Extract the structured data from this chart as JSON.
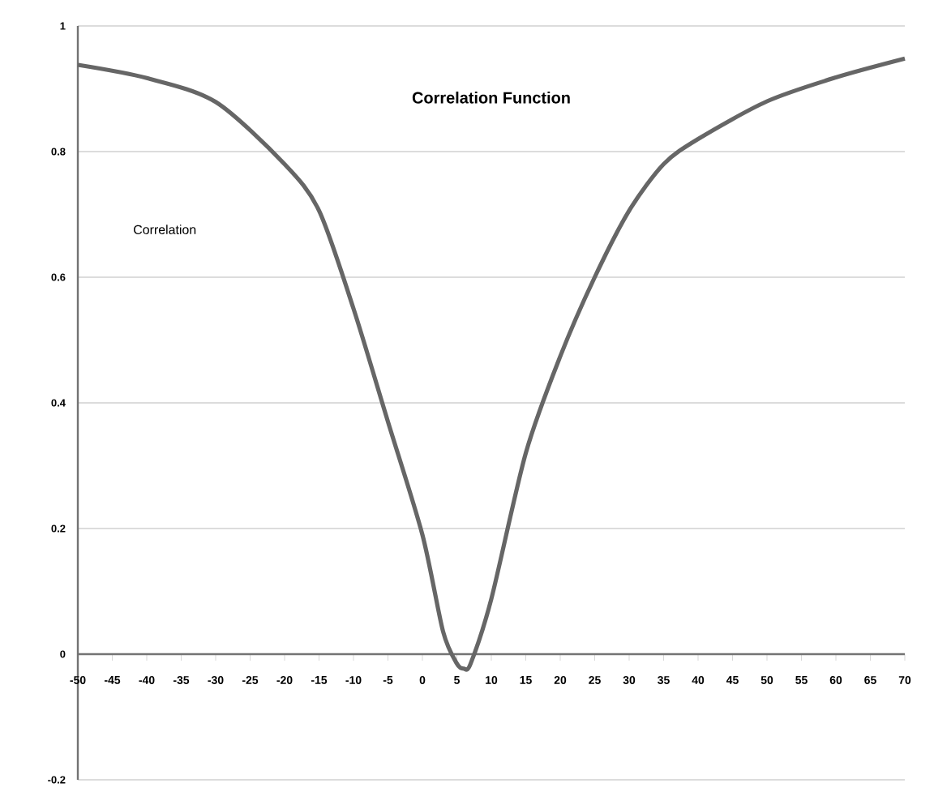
{
  "chart_data": {
    "type": "line",
    "title": "Correlation Function",
    "annotations": [
      "Correlation"
    ],
    "x": [
      -50,
      -40,
      -30,
      -20,
      -15,
      -10,
      -5,
      0,
      3,
      5,
      6,
      7,
      10,
      15,
      20,
      25,
      30,
      35,
      40,
      50,
      60,
      70
    ],
    "series": [
      {
        "color": "#666666",
        "values": [
          0.938,
          0.917,
          0.879,
          0.78,
          0.706,
          0.55,
          0.37,
          0.19,
          0.036,
          -0.015,
          -0.023,
          -0.015,
          0.088,
          0.32,
          0.474,
          0.6,
          0.706,
          0.78,
          0.82,
          0.88,
          0.918,
          0.948
        ]
      }
    ],
    "xlim": [
      -50,
      70
    ],
    "ylim": [
      -0.2,
      1
    ],
    "xticks": [
      -50,
      -45,
      -40,
      -35,
      -30,
      -25,
      -20,
      -15,
      -10,
      -5,
      0,
      5,
      10,
      15,
      20,
      25,
      30,
      35,
      40,
      45,
      50,
      55,
      60,
      65,
      70
    ],
    "yticks": [
      -0.2,
      0,
      0.2,
      0.4,
      0.6,
      0.8,
      1
    ],
    "grid": "y",
    "marker": "none",
    "line_style": "solid"
  }
}
